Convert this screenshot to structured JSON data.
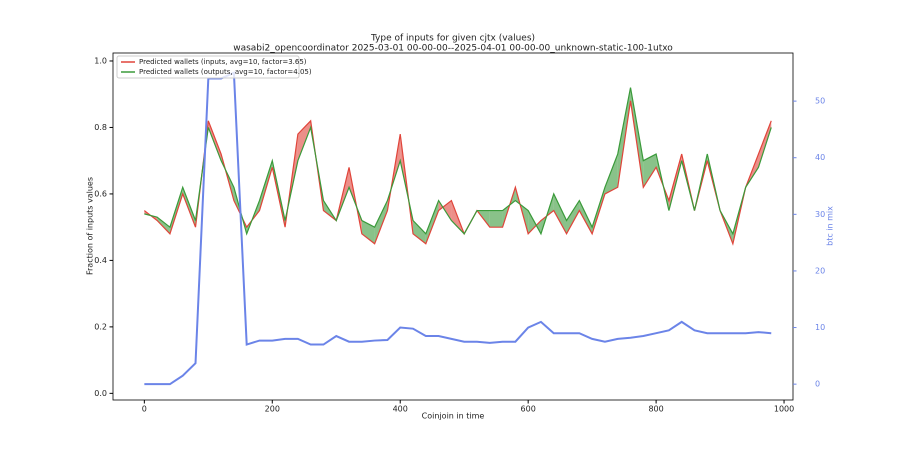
{
  "chart_data": {
    "type": "line",
    "title": "Type of inputs for given cjtx (values)",
    "subtitle": "wasabi2_opencoordinator 2025-03-01 00-00-00--2025-04-01 00-00-00_unknown-static-100-1utxo",
    "x_label": "Coinjoin in time",
    "y_label": "Fraction of inputs values",
    "y2_label": "btc in mix",
    "x": [
      0,
      20,
      40,
      60,
      80,
      100,
      120,
      140,
      160,
      180,
      200,
      220,
      240,
      260,
      280,
      300,
      320,
      340,
      360,
      380,
      400,
      420,
      440,
      460,
      480,
      500,
      520,
      540,
      560,
      580,
      600,
      620,
      640,
      660,
      680,
      700,
      720,
      740,
      760,
      780,
      800,
      820,
      840,
      860,
      880,
      900,
      920,
      940,
      960,
      980
    ],
    "series": [
      {
        "name": "Predicted wallets (inputs, avg=10, factor=3.65)",
        "color": "#e0443a",
        "values": [
          0.55,
          0.52,
          0.48,
          0.6,
          0.5,
          0.82,
          0.72,
          0.58,
          0.5,
          0.55,
          0.68,
          0.5,
          0.78,
          0.82,
          0.55,
          0.52,
          0.68,
          0.48,
          0.45,
          0.55,
          0.78,
          0.48,
          0.45,
          0.55,
          0.58,
          0.48,
          0.55,
          0.5,
          0.5,
          0.62,
          0.48,
          0.52,
          0.55,
          0.48,
          0.55,
          0.48,
          0.6,
          0.62,
          0.88,
          0.62,
          0.68,
          0.58,
          0.72,
          0.55,
          0.7,
          0.55,
          0.45,
          0.62,
          0.72,
          0.82
        ]
      },
      {
        "name": "Predicted wallets (outputs, avg=10, factor=4.05)",
        "color": "#3a9a3a",
        "values": [
          0.54,
          0.53,
          0.5,
          0.62,
          0.52,
          0.8,
          0.7,
          0.62,
          0.48,
          0.58,
          0.7,
          0.52,
          0.7,
          0.8,
          0.58,
          0.52,
          0.62,
          0.52,
          0.5,
          0.58,
          0.7,
          0.52,
          0.48,
          0.58,
          0.52,
          0.48,
          0.55,
          0.55,
          0.55,
          0.58,
          0.55,
          0.48,
          0.6,
          0.52,
          0.58,
          0.5,
          0.62,
          0.72,
          0.92,
          0.7,
          0.72,
          0.55,
          0.7,
          0.55,
          0.72,
          0.55,
          0.48,
          0.62,
          0.68,
          0.8
        ]
      },
      {
        "name": "btc in mix",
        "color": "#6b84e8",
        "axis": "y2",
        "values": [
          0,
          0,
          0,
          1.5,
          3.7,
          54,
          54,
          55,
          7,
          7.7,
          7.7,
          8,
          8,
          7,
          7,
          8.5,
          7.5,
          7.5,
          7.7,
          7.8,
          10,
          9.8,
          8.5,
          8.5,
          8,
          7.5,
          7.5,
          7.3,
          7.5,
          7.5,
          10,
          11,
          9,
          9,
          9,
          8,
          7.5,
          8,
          8.2,
          8.5,
          9,
          9.5,
          11,
          9.5,
          9,
          9,
          9,
          9,
          9.2,
          9
        ]
      }
    ],
    "xlim": [
      -49,
      1014
    ],
    "ylim": [
      -0.02,
      1.024
    ],
    "y2lim": [
      -2.8,
      58.5
    ],
    "xticks": [
      0,
      200,
      400,
      600,
      800,
      1000
    ],
    "yticks": [
      {
        "value": 0,
        "label": "0.0"
      },
      0.2,
      0.4,
      0.6,
      0.8,
      {
        "value": 1,
        "label": "1.0"
      }
    ],
    "y2ticks": [
      0,
      10,
      20,
      30,
      40,
      50
    ],
    "legend": "upper left"
  }
}
